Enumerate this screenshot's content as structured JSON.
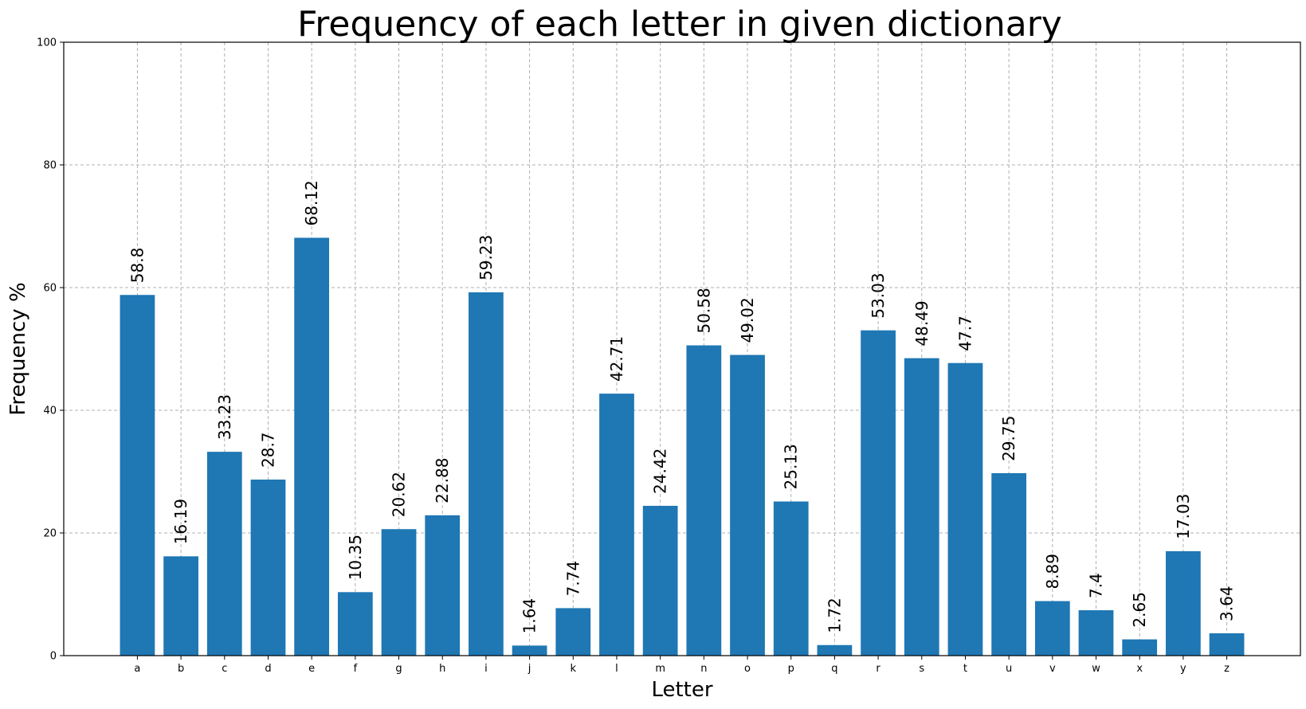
{
  "chart_data": {
    "type": "bar",
    "title": "Frequency of each letter in given dictionary",
    "xlabel": "Letter",
    "ylabel": "Frequency %",
    "categories": [
      "a",
      "b",
      "c",
      "d",
      "e",
      "f",
      "g",
      "h",
      "i",
      "j",
      "k",
      "l",
      "m",
      "n",
      "o",
      "p",
      "q",
      "r",
      "s",
      "t",
      "u",
      "v",
      "w",
      "x",
      "y",
      "z"
    ],
    "values": [
      58.8,
      16.19,
      33.23,
      28.7,
      68.12,
      10.35,
      20.62,
      22.88,
      59.23,
      1.64,
      7.74,
      42.71,
      24.42,
      50.58,
      49.02,
      25.13,
      1.72,
      53.03,
      48.49,
      47.7,
      29.75,
      8.89,
      7.4,
      2.65,
      17.03,
      3.64
    ],
    "value_labels": [
      "58.8",
      "16.19",
      "33.23",
      "28.7",
      "68.12",
      "10.35",
      "20.62",
      "22.88",
      "59.23",
      "1.64",
      "7.74",
      "42.71",
      "24.42",
      "50.58",
      "49.02",
      "25.13",
      "1.72",
      "53.03",
      "48.49",
      "47.7",
      "29.75",
      "8.89",
      "7.4",
      "2.65",
      "17.03",
      "3.64"
    ],
    "ylim": [
      0,
      100
    ],
    "yticks": [
      0,
      20,
      40,
      60,
      80,
      100
    ],
    "grid": true,
    "bar_color": "#1f77b4",
    "grid_color": "#b0b0b0"
  }
}
